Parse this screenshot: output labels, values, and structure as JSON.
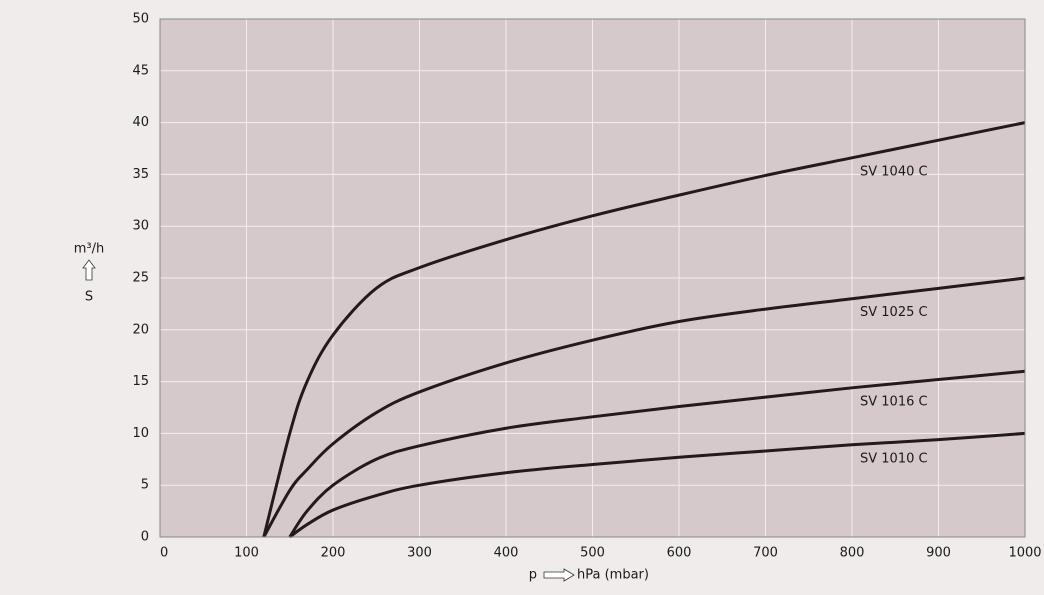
{
  "chart_data": {
    "type": "line",
    "x_label_prefix": "p",
    "x_label": "hPa (mbar)",
    "y_label": "m³/h",
    "y_symbol": "S",
    "x": [
      120,
      150,
      170,
      200,
      250,
      300,
      400,
      500,
      600,
      700,
      800,
      900,
      1000
    ],
    "series": [
      {
        "name": "SV 1040 C",
        "color": "#231a1c",
        "values": [
          0,
          10,
          15,
          19.5,
          24,
          26,
          28.7,
          31,
          33,
          34.9,
          36.6,
          38.3,
          40
        ]
      },
      {
        "name": "SV 1025 C",
        "color": "#231a1c",
        "values": [
          0,
          4.5,
          6.5,
          9,
          12,
          14,
          16.8,
          19,
          20.8,
          22,
          23,
          24,
          25
        ]
      },
      {
        "name": "SV 1016 C",
        "color": "#231a1c",
        "values": [
          null,
          0,
          2.5,
          5,
          7.5,
          8.8,
          10.5,
          11.6,
          12.6,
          13.5,
          14.4,
          15.2,
          16
        ]
      },
      {
        "name": "SV 1010 C",
        "color": "#231a1c",
        "values": [
          null,
          0,
          1.2,
          2.6,
          4,
          5,
          6.2,
          7,
          7.7,
          8.3,
          8.9,
          9.4,
          10
        ]
      }
    ],
    "xlim": [
      0,
      1000
    ],
    "ylim": [
      0,
      50
    ],
    "xticks": [
      0,
      100,
      200,
      300,
      400,
      500,
      600,
      700,
      800,
      900,
      1000
    ],
    "yticks": [
      0,
      5,
      10,
      15,
      20,
      25,
      30,
      35,
      40,
      45,
      50
    ],
    "grid": true,
    "plot_background": "#d6c9cb"
  }
}
